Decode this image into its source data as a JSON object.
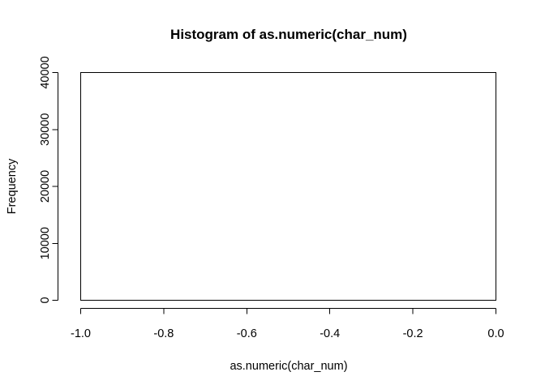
{
  "chart_data": {
    "type": "bar",
    "title": "Histogram of as.numeric(char_num)",
    "xlabel": "as.numeric(char_num)",
    "ylabel": "Frequency",
    "xlim": [
      -1.0,
      0.0
    ],
    "ylim": [
      0,
      40000
    ],
    "x_ticks": [
      -1.0,
      -0.8,
      -0.6,
      -0.4,
      -0.2,
      0.0
    ],
    "x_tick_labels": [
      "-1.0",
      "-0.8",
      "-0.6",
      "-0.4",
      "-0.2",
      "0.0"
    ],
    "y_ticks": [
      0,
      10000,
      20000,
      30000,
      40000
    ],
    "y_tick_labels": [
      "0",
      "10000",
      "20000",
      "30000",
      "40000"
    ],
    "bins": [],
    "grid": false,
    "legend": "none"
  }
}
